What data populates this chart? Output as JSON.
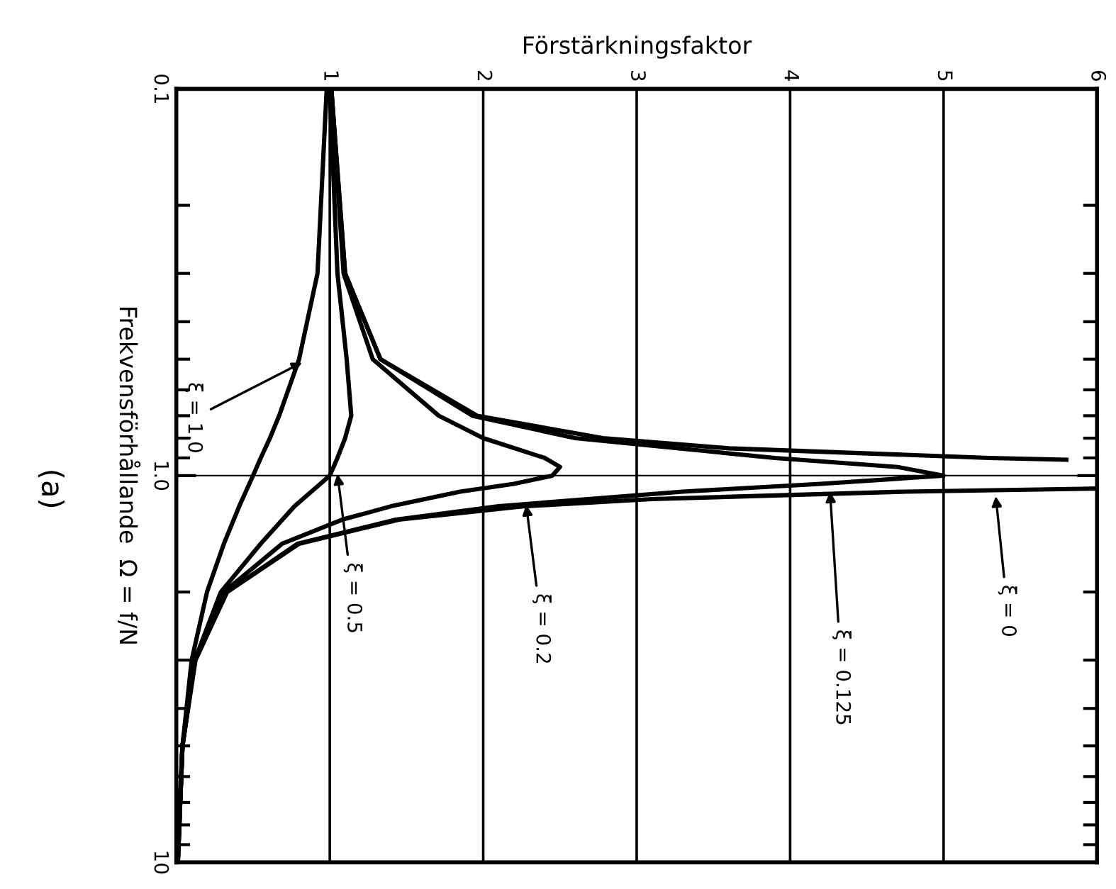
{
  "chart_data": {
    "type": "line",
    "xlabel": "Förstärkningsfaktor",
    "ylabel": "Frekvensförhållande  Ω = f/N",
    "xlim": [
      0,
      6
    ],
    "xticks": [
      1,
      2,
      3,
      4,
      5,
      6
    ],
    "ylim": [
      10,
      0.1
    ],
    "yticks": [
      {
        "value": 0.1,
        "label": "0.1"
      },
      {
        "value": 1,
        "label": "1.0"
      },
      {
        "value": 10,
        "label": "10"
      }
    ],
    "log": "y",
    "grid": "x",
    "marker": "none",
    "line_style": "solid",
    "ref_lines": [
      {
        "axis": "y",
        "value": 1.0,
        "label": null,
        "color": "#000000"
      }
    ],
    "series": [
      {
        "color": "#000000",
        "x": [
          0.98,
          0.92,
          0.8,
          0.67,
          0.61,
          0.55,
          0.5,
          0.41,
          0.31,
          0.2,
          0.1,
          0.04,
          0.015
        ],
        "values": [
          0.1,
          0.3,
          0.5,
          0.7,
          0.8,
          0.9,
          1.0,
          1.2,
          1.5,
          2,
          3,
          5,
          8
        ]
      },
      {
        "color": "#000000",
        "x": [
          1.0,
          1.05,
          1.11,
          1.14,
          1.1,
          1.05,
          1.0,
          0.88,
          0.77,
          0.55,
          0.29,
          0.12,
          0.04,
          0.01
        ],
        "values": [
          0.1,
          0.3,
          0.5,
          0.7,
          0.8,
          0.9,
          1.0,
          1.1,
          1.2,
          1.5,
          2,
          3,
          5,
          10
        ]
      },
      {
        "color": "#000000",
        "x": [
          1.01,
          1.09,
          1.28,
          1.71,
          2.0,
          2.4,
          2.5,
          2.45,
          2.2,
          1.85,
          1.4,
          1.08,
          0.69,
          0.31,
          0.12,
          0.04,
          0.01
        ],
        "values": [
          0.1,
          0.3,
          0.5,
          0.7,
          0.8,
          0.9,
          0.95,
          1.0,
          1.05,
          1.1,
          1.2,
          1.3,
          1.5,
          2,
          3,
          5,
          10
        ]
      },
      {
        "color": "#000000",
        "x": [
          1.01,
          1.1,
          1.33,
          1.93,
          2.6,
          3.9,
          4.7,
          5.0,
          4.2,
          3.3,
          2.1,
          1.43,
          0.79,
          0.33,
          0.12,
          0.04,
          0.01
        ],
        "values": [
          0.1,
          0.3,
          0.5,
          0.7,
          0.8,
          0.9,
          0.95,
          1.0,
          1.05,
          1.1,
          1.2,
          1.3,
          1.5,
          2,
          3,
          5,
          10
        ]
      },
      {
        "color": "#000000",
        "x": [
          1.01,
          1.1,
          1.33,
          1.96,
          2.78,
          3.6,
          5.3,
          5.8,
          null,
          6.0,
          4.76,
          3.1,
          2.27,
          1.45,
          0.8,
          0.33,
          0.125,
          0.04,
          0.01
        ],
        "values": [
          0.1,
          0.3,
          0.5,
          0.7,
          0.8,
          0.85,
          0.9,
          0.91,
          null,
          1.08,
          1.1,
          1.15,
          1.2,
          1.3,
          1.5,
          2,
          3,
          5,
          10
        ]
      }
    ],
    "annotations": [
      "(a)",
      {
        "text": "ξ = 1.0",
        "x": 0.82,
        "y": 0.51
      },
      {
        "text": "ξ = 0.5",
        "x": 1.05,
        "y": 0.99
      },
      {
        "text": "ξ = 0.2",
        "x": 2.28,
        "y": 1.19
      },
      {
        "text": "ξ = 0.125",
        "x": 4.26,
        "y": 1.1
      },
      {
        "text": "ξ = 0",
        "x": 5.34,
        "y": 1.13
      }
    ]
  }
}
